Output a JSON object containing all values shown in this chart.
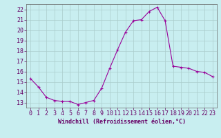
{
  "x": [
    0,
    1,
    2,
    3,
    4,
    5,
    6,
    7,
    8,
    9,
    10,
    11,
    12,
    13,
    14,
    15,
    16,
    17,
    18,
    19,
    20,
    21,
    22,
    23
  ],
  "y": [
    15.3,
    14.5,
    13.5,
    13.2,
    13.1,
    13.1,
    12.8,
    13.0,
    13.2,
    14.4,
    16.3,
    18.1,
    19.8,
    20.9,
    21.0,
    21.8,
    22.2,
    20.9,
    16.5,
    16.4,
    16.3,
    16.0,
    15.9,
    15.5
  ],
  "line_color": "#990099",
  "marker": "+",
  "marker_size": 3,
  "bg_color": "#c8eef0",
  "grid_color": "#aacccc",
  "xlabel": "Windchill (Refroidissement éolien,°C)",
  "xlabel_color": "#660066",
  "tick_color": "#660066",
  "spine_color": "#666666",
  "ylim": [
    12.5,
    22.5
  ],
  "xlim": [
    -0.5,
    23.5
  ],
  "yticks": [
    13,
    14,
    15,
    16,
    17,
    18,
    19,
    20,
    21,
    22
  ],
  "xticks": [
    0,
    1,
    2,
    3,
    4,
    5,
    6,
    7,
    8,
    9,
    10,
    11,
    12,
    13,
    14,
    15,
    16,
    17,
    18,
    19,
    20,
    21,
    22,
    23
  ],
  "label_fontsize": 6,
  "tick_fontsize": 6
}
